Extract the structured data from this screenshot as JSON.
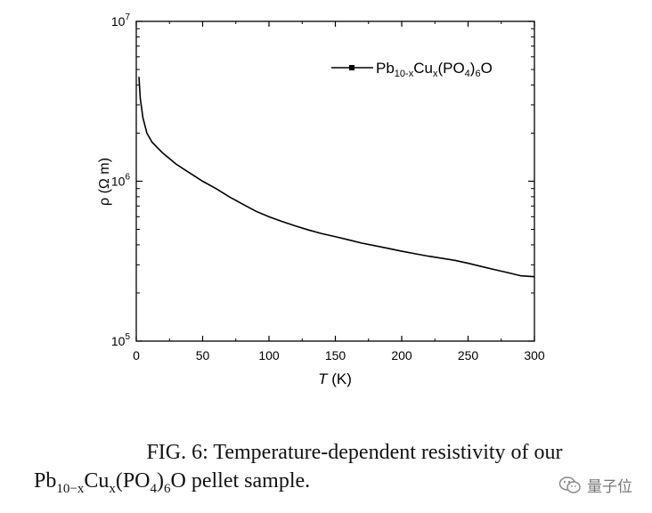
{
  "chart_data": {
    "type": "line",
    "x_scale": "linear",
    "y_scale": "log",
    "xlim": [
      0,
      300
    ],
    "ylim": [
      100000,
      10000000
    ],
    "xticks": [
      0,
      50,
      100,
      150,
      200,
      250,
      300
    ],
    "xtick_labels": [
      "0",
      "50",
      "100",
      "150",
      "200",
      "250",
      "300"
    ],
    "yticks": [
      {
        "value": 100000,
        "base": "10",
        "exp": "5"
      },
      {
        "value": 1000000,
        "base": "10",
        "exp": "6"
      },
      {
        "value": 10000000,
        "base": "10",
        "exp": "7"
      }
    ],
    "xlabel": {
      "symbol": "T",
      "unit": " (K)"
    },
    "ylabel": "ρ (Ω m)",
    "grid": false,
    "legend_position": "top-right",
    "legend": [
      {
        "base": "Pb",
        "sub1": "10-x",
        "mid1": "Cu",
        "sub2": "x",
        "mid2": "(PO",
        "sub3": "4",
        "mid3": ")",
        "sub4": "6",
        "end": "O"
      }
    ],
    "series": [
      {
        "name": "Pb10-xCux(PO4)6O",
        "color": "#000000",
        "x": [
          2,
          3,
          5,
          8,
          12,
          20,
          30,
          40,
          50,
          60,
          70,
          80,
          90,
          100,
          110,
          120,
          130,
          140,
          150,
          160,
          170,
          180,
          190,
          200,
          210,
          220,
          230,
          240,
          250,
          260,
          270,
          280,
          290,
          300
        ],
        "y": [
          4500000,
          3300000,
          2500000,
          2000000,
          1750000,
          1500000,
          1280000,
          1130000,
          1000000,
          900000,
          800000,
          720000,
          650000,
          600000,
          560000,
          525000,
          495000,
          470000,
          450000,
          430000,
          410000,
          395000,
          380000,
          365000,
          352000,
          340000,
          330000,
          320000,
          307000,
          293000,
          280000,
          268000,
          256000,
          253000
        ]
      }
    ]
  },
  "caption": {
    "line1": "FIG. 6:   Temperature-dependent resistivity of our",
    "line2_parts": {
      "base": "Pb",
      "sub1": "10−x",
      "mid1": "Cu",
      "sub2": "x",
      "mid2": "(PO",
      "sub3": "4",
      "mid3": ")",
      "sub4": "6",
      "end": "O pellet sample."
    }
  },
  "watermark": {
    "text": "量子位",
    "icon": "wechat-icon"
  }
}
